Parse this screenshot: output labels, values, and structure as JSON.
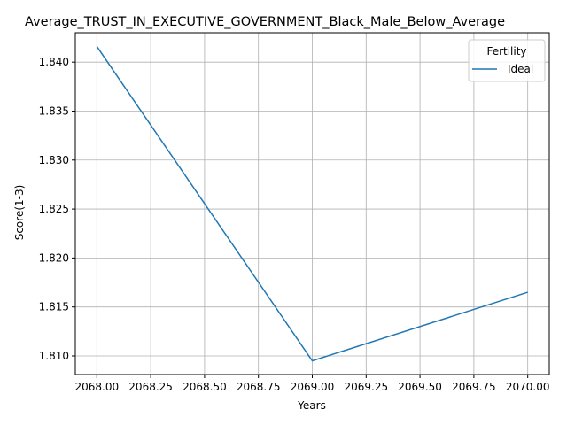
{
  "chart_data": {
    "type": "line",
    "title": "Average_TRUST_IN_EXECUTIVE_GOVERNMENT_Black_Male_Below_Average",
    "xlabel": "Years",
    "ylabel": "Score(1-3)",
    "xlim": [
      2067.9,
      2070.1
    ],
    "ylim": [
      1.8081,
      1.843
    ],
    "xticks": [
      2068.0,
      2068.25,
      2068.5,
      2068.75,
      2069.0,
      2069.25,
      2069.5,
      2069.75,
      2070.0
    ],
    "xtick_labels": [
      "2068.00",
      "2068.25",
      "2068.50",
      "2068.75",
      "2069.00",
      "2069.25",
      "2069.50",
      "2069.75",
      "2070.00"
    ],
    "yticks": [
      1.81,
      1.815,
      1.82,
      1.825,
      1.83,
      1.835,
      1.84
    ],
    "ytick_labels": [
      "1.810",
      "1.815",
      "1.820",
      "1.825",
      "1.830",
      "1.835",
      "1.840"
    ],
    "grid": true,
    "legend": {
      "title": "Fertility",
      "placement": "top-right"
    },
    "x": [
      2068,
      2069,
      2070
    ],
    "series": [
      {
        "name": "Ideal",
        "values": [
          1.8416,
          1.8095,
          1.8165
        ],
        "color": "#1f77b4"
      }
    ]
  }
}
